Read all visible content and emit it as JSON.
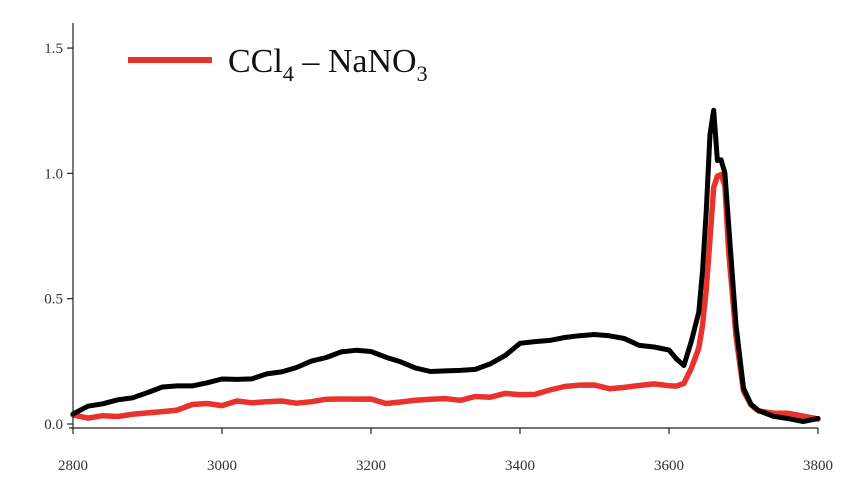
{
  "chart_data": {
    "type": "line",
    "title": "",
    "xlabel": "",
    "ylabel": "",
    "xlim": [
      2800,
      3800
    ],
    "ylim": [
      0,
      1.6
    ],
    "x_ticks": [
      "2800",
      "3000",
      "3200",
      "3400",
      "3600",
      "3800"
    ],
    "y_ticks": [
      "0.0",
      "0.5",
      "1.0",
      "1.5"
    ],
    "legend": {
      "placement": "top-left",
      "entries": [
        {
          "main": "CCl",
          "sub1": "4",
          "sep": " – NaNO",
          "sub2": "3",
          "color": "#e8322c"
        }
      ]
    },
    "series": [
      {
        "color": "#000000",
        "x": [
          2800,
          2820,
          2840,
          2860,
          2880,
          2900,
          2920,
          2940,
          2960,
          2980,
          3000,
          3020,
          3040,
          3060,
          3080,
          3100,
          3120,
          3140,
          3160,
          3180,
          3200,
          3220,
          3240,
          3260,
          3280,
          3300,
          3320,
          3340,
          3360,
          3380,
          3400,
          3420,
          3440,
          3460,
          3480,
          3500,
          3520,
          3540,
          3560,
          3580,
          3600,
          3610,
          3620,
          3630,
          3640,
          3645,
          3650,
          3655,
          3660,
          3665,
          3670,
          3675,
          3680,
          3690,
          3700,
          3710,
          3720,
          3740,
          3760,
          3780,
          3800
        ],
        "y": [
          0.04,
          0.06,
          0.08,
          0.09,
          0.1,
          0.12,
          0.14,
          0.15,
          0.16,
          0.17,
          0.18,
          0.18,
          0.19,
          0.2,
          0.21,
          0.22,
          0.24,
          0.26,
          0.28,
          0.29,
          0.28,
          0.26,
          0.24,
          0.23,
          0.22,
          0.22,
          0.22,
          0.23,
          0.25,
          0.28,
          0.31,
          0.32,
          0.33,
          0.34,
          0.35,
          0.35,
          0.34,
          0.33,
          0.32,
          0.31,
          0.3,
          0.26,
          0.24,
          0.34,
          0.45,
          0.6,
          0.85,
          1.15,
          1.25,
          1.05,
          1.05,
          1.0,
          0.8,
          0.4,
          0.15,
          0.08,
          0.06,
          0.04,
          0.03,
          0.02,
          0.02
        ]
      },
      {
        "color": "#e8322c",
        "x": [
          2800,
          2820,
          2840,
          2860,
          2880,
          2900,
          2920,
          2940,
          2960,
          2980,
          3000,
          3020,
          3040,
          3060,
          3080,
          3100,
          3120,
          3140,
          3160,
          3180,
          3200,
          3220,
          3240,
          3260,
          3280,
          3300,
          3320,
          3340,
          3360,
          3380,
          3400,
          3420,
          3440,
          3460,
          3480,
          3500,
          3520,
          3540,
          3560,
          3580,
          3600,
          3610,
          3620,
          3630,
          3640,
          3645,
          3650,
          3655,
          3660,
          3665,
          3670,
          3675,
          3680,
          3690,
          3700,
          3710,
          3720,
          3740,
          3760,
          3780,
          3800
        ],
        "y": [
          0.03,
          0.03,
          0.04,
          0.04,
          0.05,
          0.05,
          0.06,
          0.06,
          0.07,
          0.07,
          0.07,
          0.08,
          0.08,
          0.08,
          0.08,
          0.09,
          0.09,
          0.1,
          0.1,
          0.11,
          0.1,
          0.09,
          0.09,
          0.09,
          0.09,
          0.09,
          0.09,
          0.1,
          0.1,
          0.11,
          0.12,
          0.13,
          0.14,
          0.15,
          0.16,
          0.16,
          0.15,
          0.15,
          0.15,
          0.15,
          0.15,
          0.15,
          0.16,
          0.22,
          0.3,
          0.4,
          0.55,
          0.75,
          0.95,
          1.0,
          1.0,
          0.95,
          0.7,
          0.35,
          0.12,
          0.07,
          0.05,
          0.04,
          0.04,
          0.03,
          0.03
        ]
      }
    ]
  }
}
